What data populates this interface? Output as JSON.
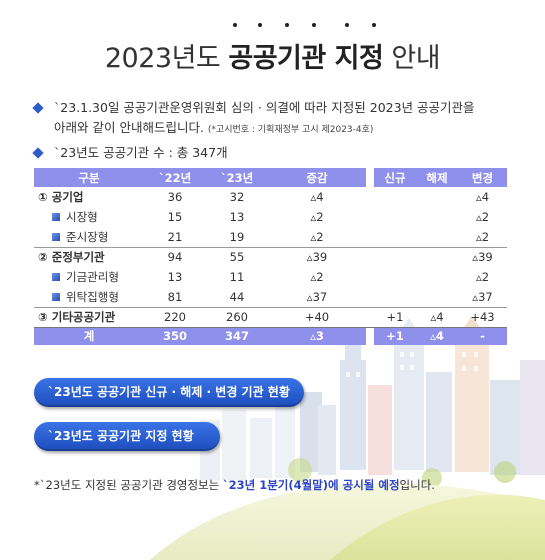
{
  "title": {
    "year": "2023년도",
    "emphasis": "공공기관 지정",
    "suffix": "안내"
  },
  "bullets": [
    {
      "line1": "`23.1.30일 공공기관운영위원회 심의 · 의결에 따라 지정된 2023년 공공기관을",
      "line2": "아래와 같이 안내해드립니다.",
      "note": "(*고시번호 : 기획재정부 고시 제2023-4호)"
    },
    {
      "line1": "`23년도 공공기관 수 : 총 347개"
    }
  ],
  "table": {
    "headers": [
      "구분",
      "`22년",
      "`23년",
      "증감",
      "신규",
      "해제",
      "변경"
    ],
    "rows": [
      {
        "label": "① 공기업",
        "y22": "36",
        "y23": "32",
        "diff": "▵4",
        "new": "",
        "rel": "",
        "chg": "▵4"
      },
      {
        "label": "시장형",
        "y22": "15",
        "y23": "13",
        "diff": "▵2",
        "new": "",
        "rel": "",
        "chg": "▵2"
      },
      {
        "label": "준시장형",
        "y22": "21",
        "y23": "19",
        "diff": "▵2",
        "new": "",
        "rel": "",
        "chg": "▵2"
      },
      {
        "label": "② 준정부기관",
        "y22": "94",
        "y23": "55",
        "diff": "▵39",
        "new": "",
        "rel": "",
        "chg": "▵39"
      },
      {
        "label": "기금관리형",
        "y22": "13",
        "y23": "11",
        "diff": "▵2",
        "new": "",
        "rel": "",
        "chg": "▵2"
      },
      {
        "label": "위탁집행형",
        "y22": "81",
        "y23": "44",
        "diff": "▵37",
        "new": "",
        "rel": "",
        "chg": "▵37"
      },
      {
        "label": "③ 기타공공기관",
        "y22": "220",
        "y23": "260",
        "diff": "+40",
        "new": "+1",
        "rel": "▵4",
        "chg": "+43"
      }
    ],
    "total": {
      "label": "계",
      "y22": "350",
      "y23": "347",
      "diff": "▵3",
      "new": "+1",
      "rel": "▵4",
      "chg": "-"
    }
  },
  "buttons": {
    "changes": "`23년도 공공기관 신규 · 해제 · 변경 기관 현황",
    "designation": "`23년도 공공기관 지정 현황"
  },
  "footnote": {
    "prefix": "*`23년도 지정된 공공기관 경영정보는 ",
    "highlight": "`23년 1분기(4월말)에 공시될 예정",
    "suffix": "입니다."
  },
  "colors": {
    "table_header": "#8f8fec",
    "accent_blue": "#2f5dc8",
    "button": "#2a5fd6",
    "highlight_text": "#2e44c8"
  }
}
